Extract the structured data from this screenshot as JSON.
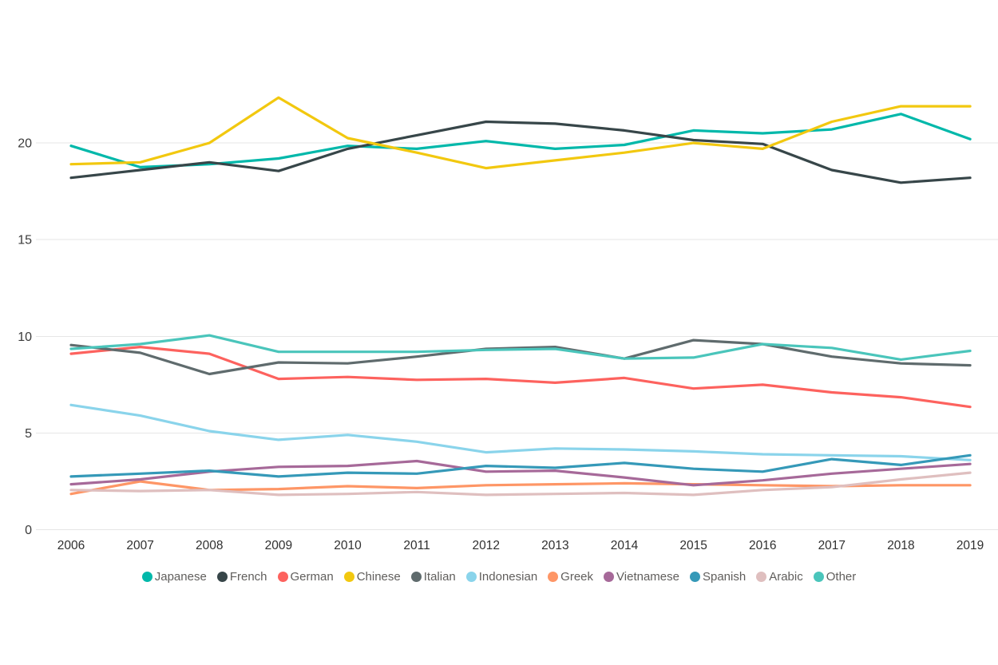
{
  "chart_data": {
    "type": "line",
    "x": [
      2006,
      2007,
      2008,
      2009,
      2010,
      2011,
      2012,
      2013,
      2014,
      2015,
      2016,
      2017,
      2018,
      2019
    ],
    "x_labels": [
      "2006",
      "2007",
      "2008",
      "2009",
      "2010",
      "2011",
      "2012",
      "2013",
      "2014",
      "2015",
      "2016",
      "2017",
      "2018",
      "2019"
    ],
    "y_ticks": [
      0,
      5,
      10,
      15,
      20
    ],
    "y_tick_labels": [
      "0",
      "5",
      "10",
      "15",
      "20"
    ],
    "ylim": [
      0,
      23.5
    ],
    "grid": "horizontal-only",
    "legend_position": "bottom",
    "title": "",
    "xlabel": "",
    "ylabel": "",
    "series": [
      {
        "name": "Japanese",
        "color": "#01B8AA",
        "values": [
          19.85,
          18.75,
          18.9,
          19.2,
          19.85,
          19.7,
          20.1,
          19.7,
          19.9,
          20.65,
          20.5,
          20.7,
          21.5,
          20.2
        ]
      },
      {
        "name": "French",
        "color": "#374649",
        "values": [
          18.2,
          18.6,
          19.0,
          18.55,
          19.7,
          20.4,
          21.1,
          21.0,
          20.65,
          20.15,
          19.95,
          18.6,
          17.95,
          18.2
        ]
      },
      {
        "name": "German",
        "color": "#FD625E",
        "values": [
          9.1,
          9.45,
          9.1,
          7.8,
          7.9,
          7.75,
          7.8,
          7.6,
          7.85,
          7.3,
          7.5,
          7.1,
          6.85,
          6.35
        ]
      },
      {
        "name": "Chinese",
        "color": "#F2C80F",
        "values": [
          18.9,
          19.0,
          20.0,
          22.35,
          20.25,
          19.5,
          18.7,
          19.1,
          19.5,
          20.0,
          19.7,
          21.1,
          21.9,
          21.9
        ]
      },
      {
        "name": "Italian",
        "color": "#5F6B6D",
        "values": [
          9.55,
          9.15,
          8.05,
          8.65,
          8.6,
          8.95,
          9.35,
          9.45,
          8.85,
          9.8,
          9.6,
          8.95,
          8.6,
          8.5
        ]
      },
      {
        "name": "Indonesian",
        "color": "#8AD4EB",
        "values": [
          6.45,
          5.9,
          5.1,
          4.65,
          4.9,
          4.55,
          4.0,
          4.2,
          4.15,
          4.05,
          3.9,
          3.85,
          3.8,
          3.6
        ]
      },
      {
        "name": "Greek",
        "color": "#FE9666",
        "values": [
          1.85,
          2.5,
          2.05,
          2.1,
          2.25,
          2.15,
          2.3,
          2.35,
          2.4,
          2.35,
          2.3,
          2.25,
          2.3,
          2.3
        ]
      },
      {
        "name": "Vietnamese",
        "color": "#A66999",
        "values": [
          2.35,
          2.6,
          3.0,
          3.25,
          3.3,
          3.55,
          3.0,
          3.05,
          2.7,
          2.3,
          2.55,
          2.9,
          3.15,
          3.4
        ]
      },
      {
        "name": "Spanish",
        "color": "#3599B8",
        "values": [
          2.75,
          2.9,
          3.05,
          2.75,
          2.95,
          2.9,
          3.3,
          3.2,
          3.45,
          3.15,
          3.0,
          3.65,
          3.35,
          3.85
        ]
      },
      {
        "name": "Arabic",
        "color": "#DFBFBF",
        "values": [
          2.05,
          2.0,
          2.05,
          1.8,
          1.85,
          1.95,
          1.8,
          1.85,
          1.9,
          1.8,
          2.05,
          2.2,
          2.6,
          2.95
        ]
      },
      {
        "name": "Other",
        "color": "#4AC5BB",
        "values": [
          9.35,
          9.6,
          10.05,
          9.2,
          9.2,
          9.2,
          9.3,
          9.35,
          8.85,
          8.9,
          9.6,
          9.4,
          8.8,
          9.25
        ]
      }
    ]
  }
}
